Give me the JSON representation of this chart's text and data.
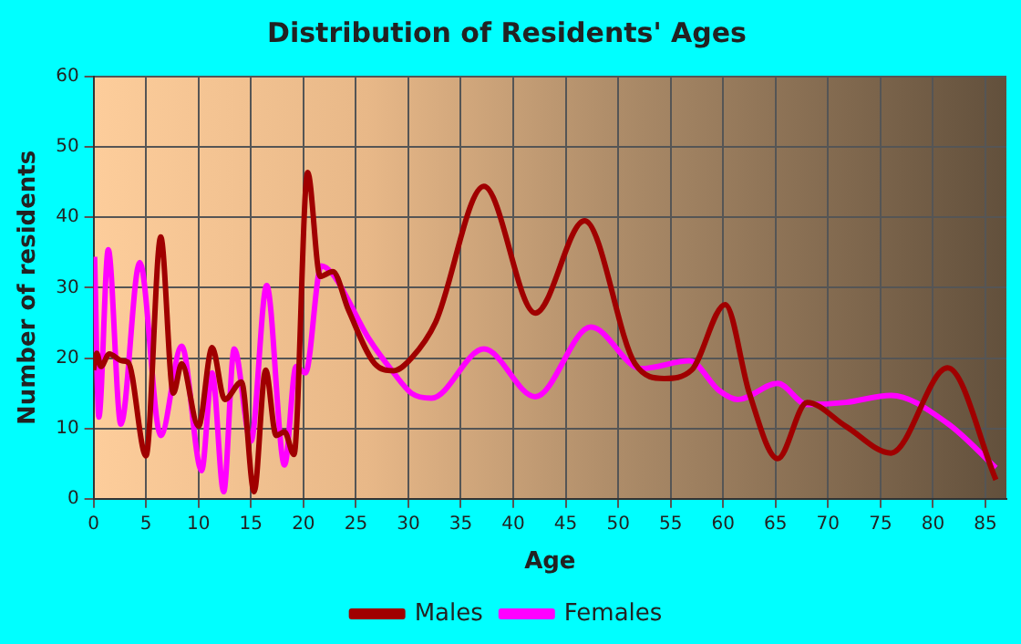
{
  "chart_data": {
    "type": "line",
    "title": "Distribution of Residents' Ages",
    "xlabel": "Age",
    "ylabel": "Number of residents",
    "xlim": [
      0,
      87
    ],
    "xticks": [
      0,
      5,
      10,
      15,
      20,
      25,
      30,
      35,
      40,
      45,
      50,
      55,
      60,
      65,
      70,
      75,
      80,
      85
    ],
    "ylim": [
      0,
      60
    ],
    "yticks": [
      0,
      10,
      20,
      30,
      40,
      50,
      60
    ],
    "grid": true,
    "legend": "bottom",
    "marker": "none",
    "line_style": "solid",
    "series": [
      {
        "name": "Males",
        "color": "#a00000",
        "x": [
          0,
          0.3,
          0.7,
          1.5,
          2.7,
          3.3,
          5,
          6.4,
          7.6,
          8.4,
          10,
          11.3,
          12.5,
          14.1,
          15.3,
          16.4,
          17.4,
          18.2,
          19.1,
          20.4,
          21.6,
          22.8,
          24.3,
          26.8,
          28.6,
          30.3,
          32.6,
          37.2,
          42.1,
          46.8,
          51.6,
          54.4,
          57,
          60.2,
          62.5,
          65.2,
          68,
          71.7,
          76,
          81.4,
          86
        ],
        "values": [
          18.3,
          20.7,
          18.8,
          20.6,
          19.6,
          19.4,
          6.1,
          37.2,
          15,
          19.2,
          10.3,
          21.5,
          14.1,
          16.6,
          1,
          18.3,
          9,
          9.5,
          6.3,
          46.4,
          31.6,
          32.3,
          26.8,
          19.2,
          18.2,
          20,
          25.1,
          44.4,
          26.4,
          39.5,
          19.2,
          17.1,
          18.3,
          27.6,
          15,
          5.7,
          13.7,
          10.3,
          6.5,
          18.6,
          2.7
        ]
      },
      {
        "name": "Females",
        "color": "#ff00ff",
        "x": [
          0.1,
          0.5,
          1.4,
          2.6,
          4.4,
          6.4,
          8.4,
          10.3,
          11.3,
          12.4,
          13.4,
          15,
          16.5,
          18.2,
          19.3,
          20.2,
          21.7,
          22.8,
          26.3,
          28.6,
          30.3,
          32.2,
          37.2,
          42.1,
          47.4,
          52.2,
          56.8,
          59.6,
          61.4,
          65.2,
          68,
          71.7,
          76,
          81.4,
          86
        ],
        "values": [
          34.4,
          11.6,
          35.4,
          10.6,
          33.6,
          9,
          21.7,
          4,
          17.9,
          1,
          21.3,
          8.2,
          30.3,
          4.8,
          18.8,
          17.9,
          33.1,
          31.9,
          22.6,
          17.9,
          15,
          14.3,
          21.3,
          14.5,
          24.4,
          18.5,
          19.6,
          15.4,
          14.1,
          16.4,
          13.4,
          13.7,
          14.7,
          10.7,
          4.4
        ]
      }
    ]
  }
}
